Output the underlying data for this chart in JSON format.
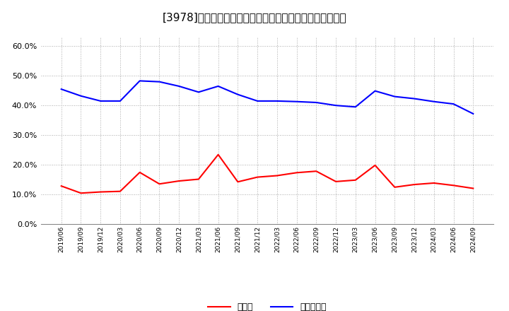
{
  "title": "[3978]　現預金、有利子負債の総資産に対する比率の推移",
  "x_labels": [
    "2019/06",
    "2019/09",
    "2019/12",
    "2020/03",
    "2020/06",
    "2020/09",
    "2020/12",
    "2021/03",
    "2021/06",
    "2021/09",
    "2021/12",
    "2022/03",
    "2022/06",
    "2022/09",
    "2022/12",
    "2023/03",
    "2023/06",
    "2023/09",
    "2023/12",
    "2024/03",
    "2024/06",
    "2024/09"
  ],
  "cash": [
    0.128,
    0.104,
    0.108,
    0.11,
    0.174,
    0.135,
    0.145,
    0.151,
    0.234,
    0.142,
    0.158,
    0.163,
    0.173,
    0.178,
    0.143,
    0.148,
    0.198,
    0.124,
    0.133,
    0.138,
    0.13,
    0.12
  ],
  "debt": [
    0.455,
    0.432,
    0.415,
    0.415,
    0.483,
    0.48,
    0.465,
    0.445,
    0.465,
    0.437,
    0.415,
    0.415,
    0.413,
    0.41,
    0.4,
    0.395,
    0.449,
    0.43,
    0.423,
    0.413,
    0.405,
    0.372
  ],
  "cash_color": "#ff0000",
  "debt_color": "#0000ff",
  "background_color": "#ffffff",
  "grid_color": "#aaaaaa",
  "ylim": [
    0.0,
    0.63
  ],
  "yticks": [
    0.0,
    0.1,
    0.2,
    0.3,
    0.4,
    0.5,
    0.6
  ],
  "legend_cash": "現預金",
  "legend_debt": "有利子負債",
  "title_fontsize": 11,
  "line_width": 1.5
}
